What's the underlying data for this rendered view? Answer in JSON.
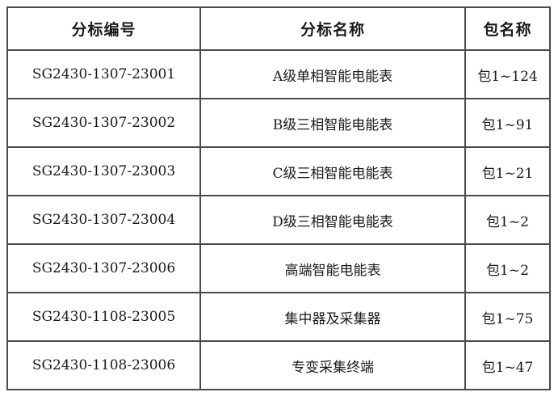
{
  "table": {
    "headers": [
      "分标编号",
      "分标名称",
      "包名称"
    ],
    "rows": [
      {
        "code": "SG2430-1307-23001",
        "name": "A级单相智能电能表",
        "packages": "包1~124"
      },
      {
        "code": "SG2430-1307-23002",
        "name": "B级三相智能电能表",
        "packages": "包1~91"
      },
      {
        "code": "SG2430-1307-23003",
        "name": "C级三相智能电能表",
        "packages": "包1~21"
      },
      {
        "code": "SG2430-1307-23004",
        "name": "D级三相智能电能表",
        "packages": "包1~2"
      },
      {
        "code": "SG2430-1307-23006",
        "name": "高端智能电能表",
        "packages": "包1~2"
      },
      {
        "code": "SG2430-1108-23005",
        "name": "集中器及采集器",
        "packages": "包1~75"
      },
      {
        "code": "SG2430-1108-23006",
        "name": "专变采集终端",
        "packages": "包1~47"
      }
    ]
  },
  "colors": {
    "outer_border": "#161616",
    "inner_border": "#4a4a4a",
    "text": "#1a1a1a",
    "background": "#ffffff"
  }
}
